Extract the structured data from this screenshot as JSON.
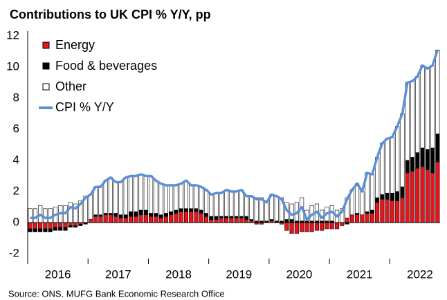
{
  "chart_data": {
    "type": "stacked-bar-line",
    "title": "Contributions to UK CPI % Y/Y, pp",
    "source": "Source: ONS. MUFG Bank Economic Research Office",
    "categories": [
      null,
      null,
      null,
      null,
      null,
      null,
      "2016",
      null,
      null,
      null,
      null,
      null,
      null,
      null,
      null,
      null,
      null,
      null,
      "2017",
      null,
      null,
      null,
      null,
      null,
      null,
      null,
      null,
      null,
      null,
      null,
      "2018",
      null,
      null,
      null,
      null,
      null,
      null,
      null,
      null,
      null,
      null,
      null,
      "2019",
      null,
      null,
      null,
      null,
      null,
      null,
      null,
      null,
      null,
      null,
      null,
      "2020",
      null,
      null,
      null,
      null,
      null,
      null,
      null,
      null,
      null,
      null,
      null,
      "2021",
      null,
      null,
      null,
      null,
      null,
      null,
      null,
      null,
      null,
      null,
      null,
      "2022",
      null,
      null,
      null
    ],
    "series": [
      {
        "name": "Energy",
        "kind": "bar",
        "color": "#e8141c",
        "values": [
          -0.4,
          -0.4,
          -0.4,
          -0.4,
          -0.4,
          -0.3,
          -0.3,
          -0.3,
          -0.2,
          -0.2,
          -0.1,
          0.0,
          0.2,
          0.4,
          0.4,
          0.5,
          0.5,
          0.4,
          0.3,
          0.3,
          0.4,
          0.4,
          0.5,
          0.5,
          0.4,
          0.4,
          0.3,
          0.4,
          0.5,
          0.6,
          0.7,
          0.7,
          0.7,
          0.7,
          0.6,
          0.4,
          0.2,
          0.2,
          0.3,
          0.3,
          0.3,
          0.3,
          0.3,
          0.2,
          0.1,
          -0.1,
          -0.1,
          0.0,
          0.1,
          0.0,
          -0.1,
          -0.5,
          -0.7,
          -0.7,
          -0.6,
          -0.6,
          -0.6,
          -0.5,
          -0.5,
          -0.4,
          -0.4,
          -0.4,
          -0.2,
          0.3,
          0.5,
          0.5,
          0.5,
          0.6,
          0.6,
          1.3,
          1.5,
          1.5,
          1.4,
          1.4,
          1.6,
          3.2,
          3.3,
          3.5,
          3.6,
          3.4,
          3.2,
          3.9
        ]
      },
      {
        "name": "Food & beverages",
        "kind": "bar",
        "color": "#000000",
        "values": [
          -0.2,
          -0.2,
          -0.2,
          -0.2,
          -0.2,
          -0.2,
          -0.2,
          -0.2,
          -0.1,
          -0.1,
          -0.1,
          -0.1,
          0.0,
          0.1,
          0.1,
          0.1,
          0.1,
          0.2,
          0.2,
          0.2,
          0.3,
          0.3,
          0.3,
          0.3,
          0.2,
          0.2,
          0.2,
          0.2,
          0.2,
          0.2,
          0.2,
          0.2,
          0.2,
          0.2,
          0.2,
          0.2,
          0.2,
          0.2,
          0.1,
          0.1,
          0.1,
          0.1,
          0.1,
          0.2,
          0.1,
          0.1,
          0.1,
          0.1,
          0.1,
          0.1,
          0.1,
          0.2,
          0.2,
          0.1,
          0.1,
          0.1,
          0.1,
          0.1,
          0.1,
          0.1,
          0.1,
          0.0,
          0.0,
          -0.1,
          0.0,
          0.1,
          0.0,
          0.1,
          0.2,
          0.3,
          0.3,
          0.4,
          0.5,
          0.6,
          0.7,
          0.8,
          0.9,
          1.0,
          1.2,
          1.3,
          1.6,
          1.8
        ]
      },
      {
        "name": "Other",
        "kind": "bar",
        "color": "#ffffff",
        "values": [
          0.9,
          0.9,
          1.1,
          0.9,
          0.9,
          1.0,
          1.1,
          1.1,
          1.3,
          1.2,
          1.4,
          1.7,
          1.6,
          1.8,
          1.8,
          2.1,
          2.3,
          2.0,
          2.1,
          2.4,
          2.3,
          2.3,
          2.3,
          2.2,
          2.4,
          2.1,
          2.0,
          1.8,
          1.7,
          1.6,
          1.6,
          1.8,
          1.5,
          1.5,
          1.5,
          1.5,
          1.4,
          1.5,
          1.5,
          1.7,
          1.6,
          1.6,
          1.7,
          1.3,
          1.5,
          1.5,
          1.5,
          1.2,
          1.6,
          1.6,
          1.5,
          1.1,
          1.0,
          1.2,
          1.5,
          0.7,
          1.0,
          1.1,
          0.7,
          0.9,
          1.0,
          0.8,
          0.9,
          1.3,
          1.6,
          1.9,
          1.5,
          2.5,
          2.3,
          2.6,
          3.3,
          3.5,
          3.6,
          4.2,
          4.7,
          5.0,
          4.9,
          4.9,
          5.3,
          5.2,
          5.3,
          5.4
        ]
      },
      {
        "name": "CPI % Y/Y",
        "kind": "line",
        "color": "#5b8fd6",
        "values": [
          0.3,
          0.3,
          0.5,
          0.3,
          0.3,
          0.5,
          0.6,
          0.6,
          1.0,
          0.9,
          1.2,
          1.6,
          1.8,
          2.3,
          2.3,
          2.7,
          2.9,
          2.6,
          2.6,
          2.9,
          3.0,
          3.0,
          3.1,
          3.0,
          3.0,
          2.7,
          2.5,
          2.4,
          2.4,
          2.4,
          2.5,
          2.7,
          2.4,
          2.4,
          2.3,
          2.1,
          1.8,
          1.9,
          1.9,
          2.1,
          2.0,
          2.0,
          2.1,
          1.7,
          1.7,
          1.5,
          1.5,
          1.3,
          1.8,
          1.7,
          1.5,
          0.8,
          0.5,
          0.6,
          1.0,
          0.2,
          0.5,
          0.7,
          0.3,
          0.6,
          0.7,
          0.4,
          0.7,
          1.5,
          2.1,
          2.5,
          2.0,
          3.2,
          3.1,
          4.2,
          5.1,
          5.4,
          5.5,
          6.2,
          7.0,
          9.0,
          9.1,
          9.4,
          10.1,
          9.9,
          10.1,
          11.1
        ]
      }
    ],
    "ylim": [
      -2,
      12
    ],
    "yticks": [
      -2,
      0,
      2,
      4,
      6,
      8,
      10,
      12
    ],
    "legend": "top-left"
  }
}
